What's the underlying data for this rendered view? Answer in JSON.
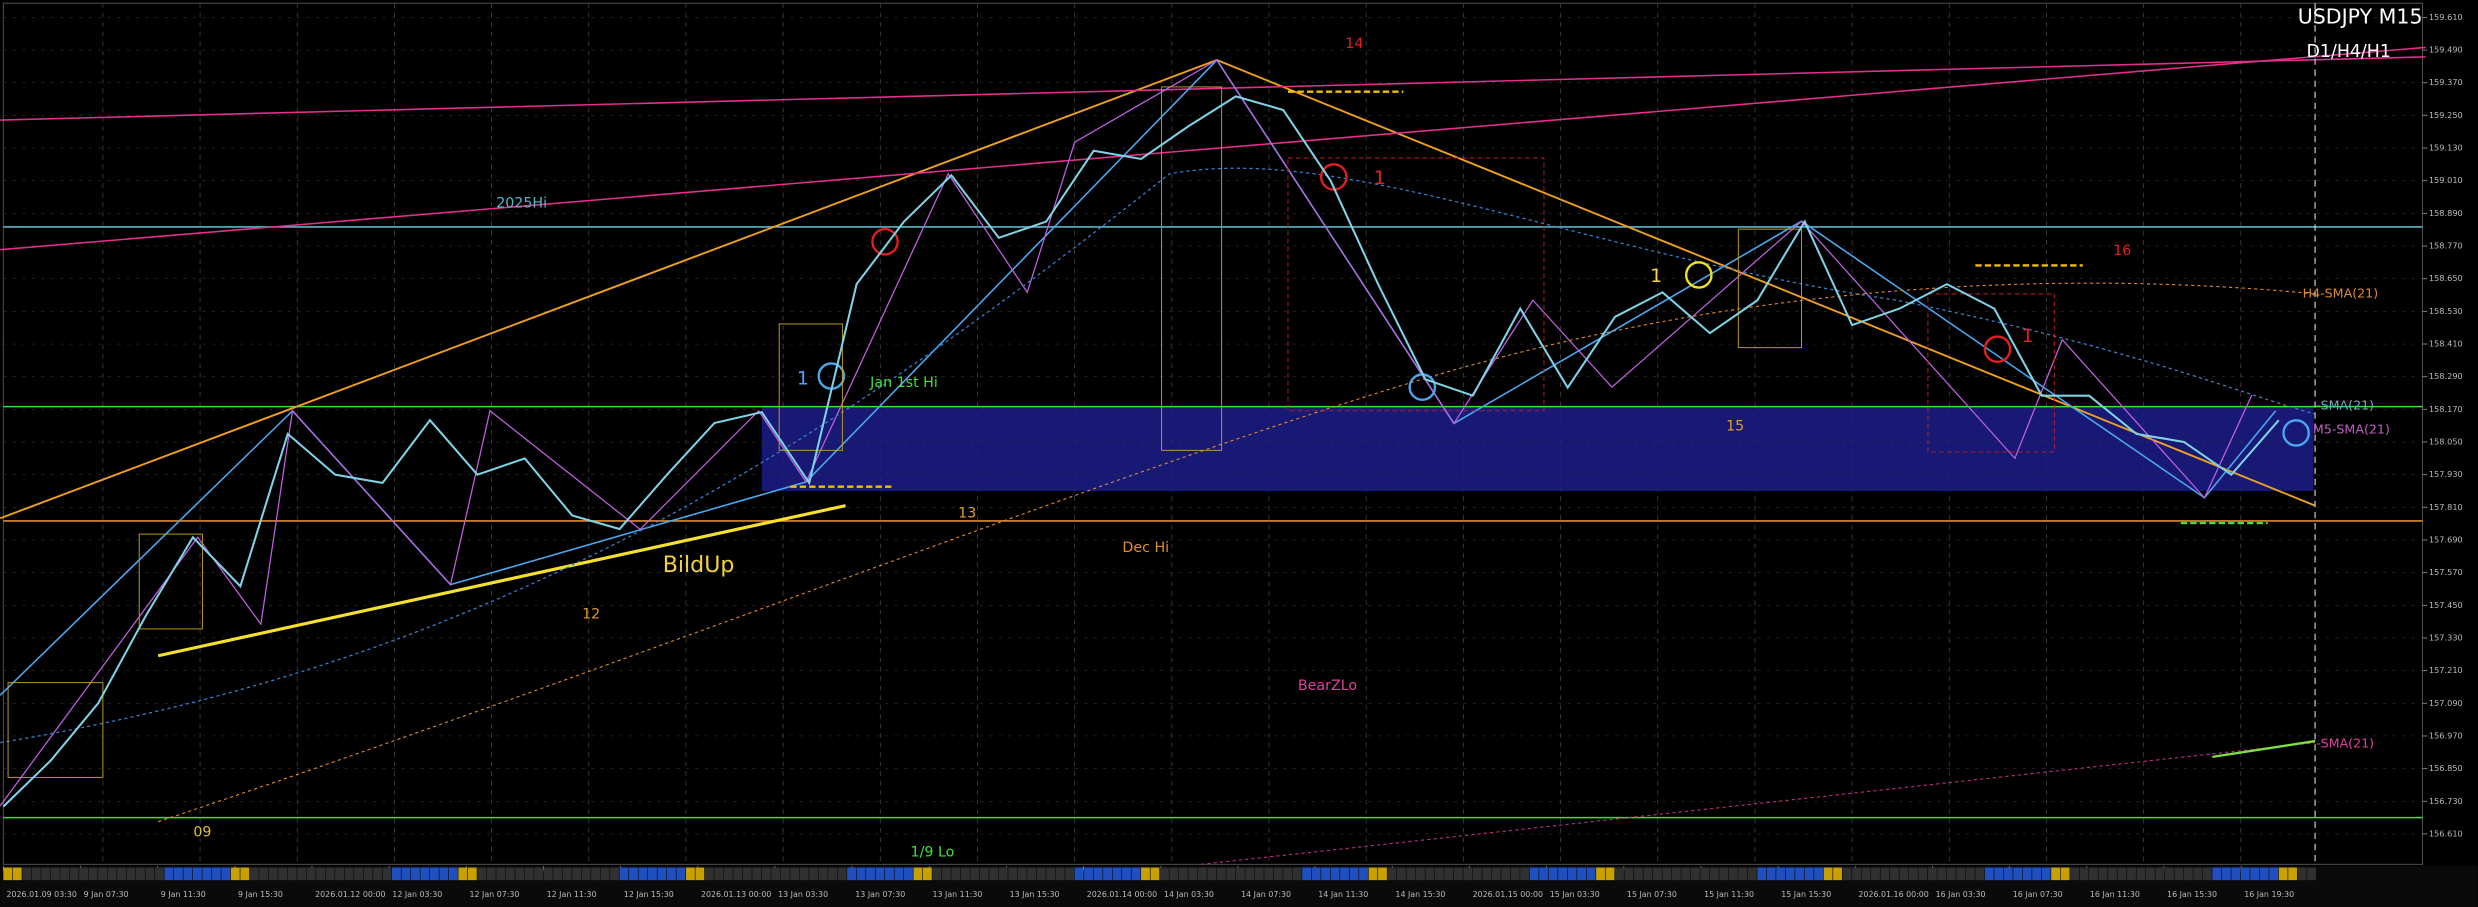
{
  "chart_data": {
    "type": "line",
    "title": "USDJPY M15",
    "subtitle": "D1/H4/H1",
    "values": [
      156.71,
      156.88,
      157.09,
      157.41,
      157.7,
      157.52,
      158.08,
      157.93,
      157.9,
      158.13,
      157.93,
      157.99,
      157.78,
      157.73,
      157.93,
      158.12,
      158.16,
      157.9,
      158.63,
      158.86,
      159.03,
      158.8,
      158.86,
      159.12,
      159.09,
      159.21,
      159.32,
      159.27,
      159.01,
      158.63,
      158.28,
      158.22,
      158.54,
      158.25,
      158.51,
      158.6,
      158.45,
      158.57,
      158.86,
      158.48,
      158.54,
      158.63,
      158.54,
      158.22,
      158.22,
      158.08,
      158.05,
      157.93,
      158.13
    ],
    "color": "#7fd3e6",
    "ylim": [
      156.51,
      159.61
    ],
    "yticks": [
      {
        "value": 159.61,
        "label": "159.610"
      },
      {
        "value": 159.49,
        "label": "159.490"
      },
      {
        "value": 159.37,
        "label": "159.370"
      },
      {
        "value": 159.25,
        "label": "159.250"
      },
      {
        "value": 159.13,
        "label": "159.130"
      },
      {
        "value": 159.01,
        "label": "159.010"
      },
      {
        "value": 158.89,
        "label": "158.890"
      },
      {
        "value": 158.77,
        "label": "158.770"
      },
      {
        "value": 158.65,
        "label": "158.650"
      },
      {
        "value": 158.53,
        "label": "158.530"
      },
      {
        "value": 158.41,
        "label": "158.410"
      },
      {
        "value": 158.29,
        "label": "158.290"
      },
      {
        "value": 158.17,
        "label": "158.170"
      },
      {
        "value": 158.05,
        "label": "158.050"
      },
      {
        "value": 157.93,
        "label": "157.930"
      },
      {
        "value": 157.81,
        "label": "157.810"
      },
      {
        "value": 157.69,
        "label": "157.690"
      },
      {
        "value": 157.57,
        "label": "157.570"
      },
      {
        "value": 157.45,
        "label": "157.450"
      },
      {
        "value": 157.33,
        "label": "157.330"
      },
      {
        "value": 157.21,
        "label": "157.210"
      },
      {
        "value": 157.09,
        "label": "157.090"
      },
      {
        "value": 156.97,
        "label": "156.970"
      },
      {
        "value": 156.85,
        "label": "156.850"
      },
      {
        "value": 156.73,
        "label": "156.730"
      },
      {
        "value": 156.61,
        "label": "156.610"
      }
    ],
    "grid": true,
    "zone": {
      "from": 157.87,
      "to": 158.18,
      "color": "#1c1c8a"
    },
    "levels": [
      {
        "label": "2025Hi",
        "value": 158.84,
        "color": "#5fb3c9"
      },
      {
        "label": "Jan 1st Hi",
        "value": 158.18,
        "color": "#3ce03c"
      },
      {
        "label": "Dec Hi",
        "value": 157.76,
        "color": "#e08a30"
      },
      {
        "label": "1/9 Lo",
        "value": 156.67,
        "color": "#3ce03c"
      }
    ],
    "annotations": [
      {
        "text": "BildUp",
        "color": "#f5d142"
      },
      {
        "text": "12",
        "color": "#e0a030"
      },
      {
        "text": "13",
        "color": "#e0a030"
      },
      {
        "text": "BearZLo",
        "color": "#e040a0"
      },
      {
        "text": "09",
        "color": "#e0c030"
      },
      {
        "text": "14",
        "color": "#e02020"
      },
      {
        "text": "15",
        "color": "#e0a030"
      },
      {
        "text": "16",
        "color": "#e02020"
      },
      {
        "text": "1",
        "color": "#4aa0ff"
      },
      {
        "text": "1",
        "color": "#e02020"
      },
      {
        "text": "1",
        "color": "#f5d142"
      },
      {
        "text": "1",
        "color": "#e02020"
      },
      {
        "text": "H4-SMA(21)",
        "color": "#e08a30"
      },
      {
        "text": "-SMA(21)",
        "color": "#5fb3c9"
      },
      {
        "text": "M5-SMA(21)",
        "color": "#c060c0"
      },
      {
        "text": "-SMA(21)",
        "color": "#e040a0"
      }
    ],
    "time_labels": [
      "2026.01.09 03:30",
      "9 Jan 07:30",
      "9 Jan 11:30",
      "9 Jan 15:30",
      "2026.01.12 00:00",
      "12 Jan 03:30",
      "12 Jan 07:30",
      "12 Jan 11:30",
      "12 Jan 15:30",
      "2026.01.13 00:00",
      "13 Jan 03:30",
      "13 Jan 07:30",
      "13 Jan 11:30",
      "13 Jan 15:30",
      "2026.01.14 00:00",
      "14 Jan 03:30",
      "14 Jan 07:30",
      "14 Jan 11:30",
      "14 Jan 15:30",
      "2026.01.15 00:00",
      "15 Jan 03:30",
      "15 Jan 07:30",
      "15 Jan 11:30",
      "15 Jan 15:30",
      "2026.01.16 00:00",
      "16 Jan 03:30",
      "16 Jan 07:30",
      "16 Jan 11:30",
      "16 Jan 15:30",
      "16 Jan 19:30"
    ]
  }
}
